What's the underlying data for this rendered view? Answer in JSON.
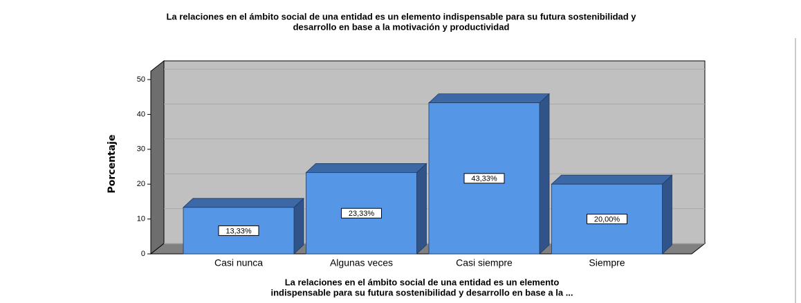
{
  "chart_data": {
    "type": "bar3d",
    "title": [
      "La relaciones en el ámbito social de una entidad es un elemento indispensable para su futura sostenibilidad y",
      "desarrollo en base a la motivación y productividad"
    ],
    "x_label": [
      "La relaciones en el ámbito social de una entidad es un elemento",
      "indispensable para su futura sostenibilidad y desarrollo en base a la ..."
    ],
    "y_label": "Porcentaje",
    "categories": [
      "Casi nunca",
      "Algunas veces",
      "Casi siempre",
      "Siempre"
    ],
    "values": [
      13.33,
      23.33,
      43.33,
      20.0
    ],
    "value_labels": [
      "13,33%",
      "23,33%",
      "43,33%",
      "20,00%"
    ],
    "color": "#5596e6",
    "ylim": [
      0,
      50
    ],
    "yticks": [
      0,
      10,
      20,
      30,
      40,
      50
    ],
    "grid": true
  }
}
